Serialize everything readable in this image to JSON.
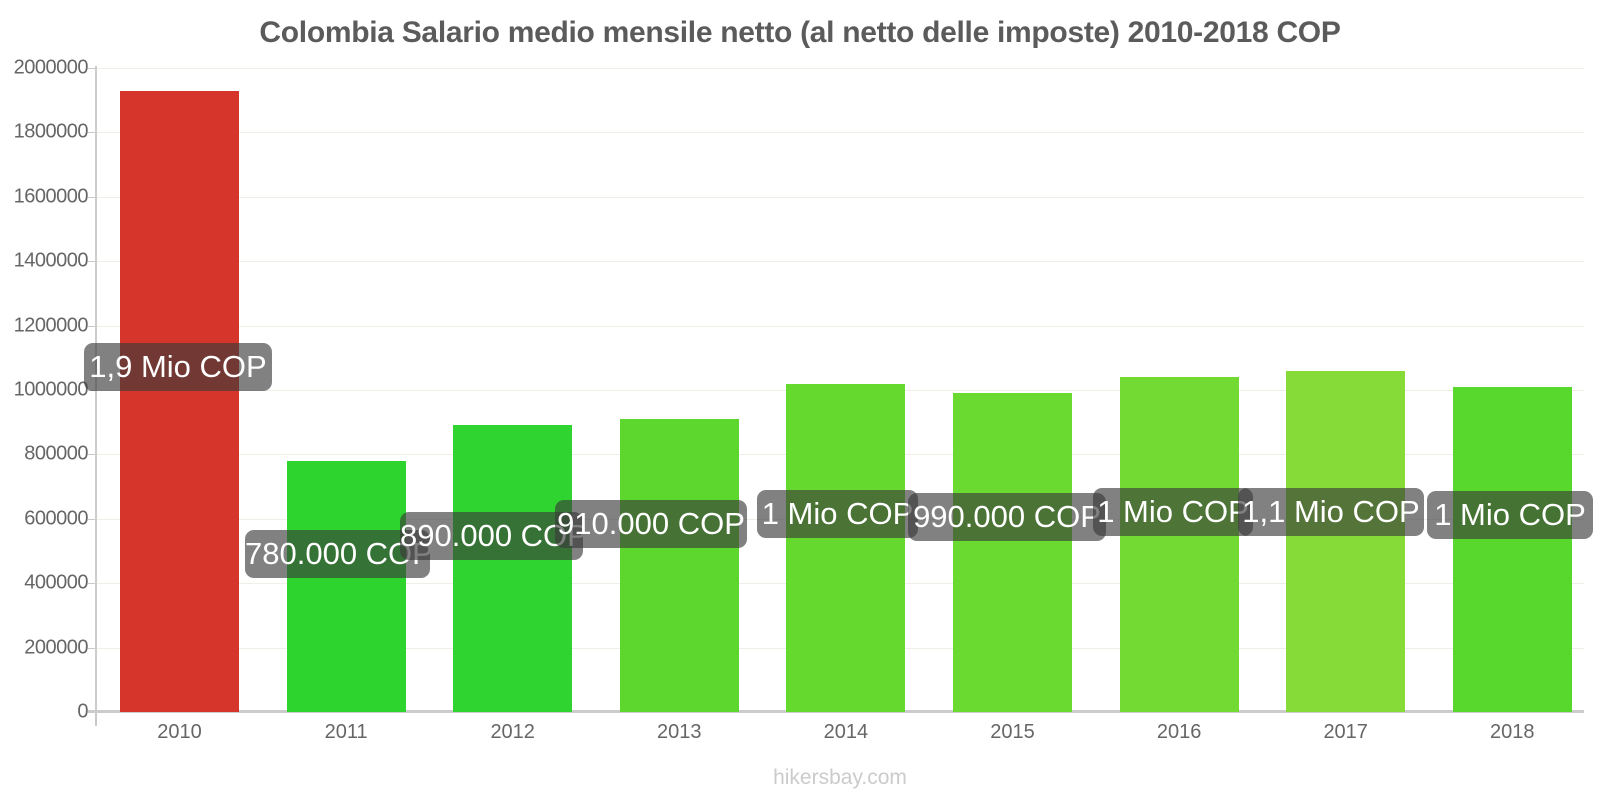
{
  "title": "Colombia Salario medio mensile netto (al netto delle imposte) 2010-2018 COP",
  "watermark": "hikersbay.com",
  "chart_data": {
    "type": "bar",
    "title": "Colombia Salario medio mensile netto (al netto delle imposte) 2010-2018 COP",
    "xlabel": "",
    "ylabel": "",
    "currency": "COP",
    "categories": [
      "2010",
      "2011",
      "2012",
      "2013",
      "2014",
      "2015",
      "2016",
      "2017",
      "2018"
    ],
    "values": [
      1930000,
      780000,
      890000,
      910000,
      1020000,
      990000,
      1040000,
      1060000,
      1010000
    ],
    "bar_labels": [
      "1,9 Mio COP",
      "780.000 COP",
      "890.000 COP",
      "910.000 COP",
      "1 Mio COP",
      "990.000 COP",
      "1 Mio COP",
      "1,1 Mio COP",
      "1 Mio COP"
    ],
    "bar_colors": [
      "#d6352c",
      "#2ed42e",
      "#30d430",
      "#5dd72e",
      "#66d92e",
      "#6ad930",
      "#73da33",
      "#86db38",
      "#58d72c"
    ],
    "ylim": [
      0,
      2000000
    ],
    "y_ticks": [
      0,
      200000,
      400000,
      600000,
      800000,
      1000000,
      1200000,
      1400000,
      1600000,
      1800000,
      2000000
    ],
    "grid": "faint horizontal gridlines",
    "legend": "none"
  },
  "colors": {
    "title_text": "#5b5b5b",
    "axis": "#cccccc",
    "grid": "#f1ede7",
    "tick_label": "#666666",
    "tooltip_bg": "rgba(58,58,58,0.64)",
    "tooltip_text": "#ffffff",
    "watermark_text": "#cbcbcb",
    "highlight_bar": "#d6352c"
  }
}
